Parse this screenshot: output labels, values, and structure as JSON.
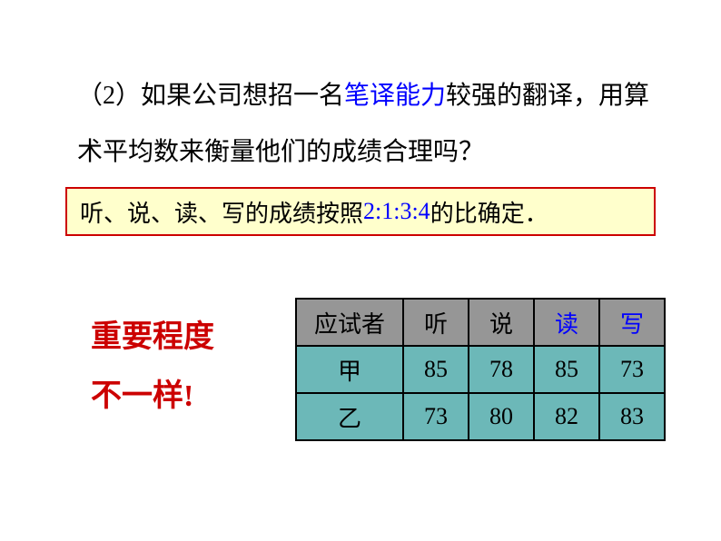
{
  "question": {
    "prefix": "（2）如果公司想招一名",
    "highlight": "笔译能力",
    "suffix": "较强的翻译，用算术平均数来衡量他们的成绩合理吗？"
  },
  "box": {
    "prefix": "听、说、读、写的成绩按照",
    "ratio": "2:1:3:4",
    "suffix": "的比确定．"
  },
  "note": {
    "line1": "重要程度",
    "line2_text": "不一样",
    "line2_excl": "!"
  },
  "table": {
    "headers": {
      "c0": "应试者",
      "c1": "听",
      "c2": "说",
      "c3": "读",
      "c4": "写"
    },
    "header_colors": {
      "c0": "#000000",
      "c1": "#000000",
      "c2": "#000000",
      "c3": "#0000ff",
      "c4": "#0000ff"
    },
    "rows": [
      {
        "label": "甲",
        "v1": "85",
        "v2": "78",
        "v3": "85",
        "v4": "73"
      },
      {
        "label": "乙",
        "v1": "73",
        "v2": "80",
        "v3": "82",
        "v4": "83"
      }
    ],
    "header_bg": "#969696",
    "data_bg": "#6cb8b8",
    "border_color": "#000000"
  },
  "styling": {
    "background_color": "#ffffff",
    "text_color": "#000000",
    "highlight_color": "#0000ff",
    "note_color": "#cc0000",
    "box_bg": "#ffffcc",
    "box_border": "#cc0000",
    "question_fontsize": 28,
    "box_fontsize": 26,
    "note_fontsize": 34,
    "table_fontsize": 26
  }
}
